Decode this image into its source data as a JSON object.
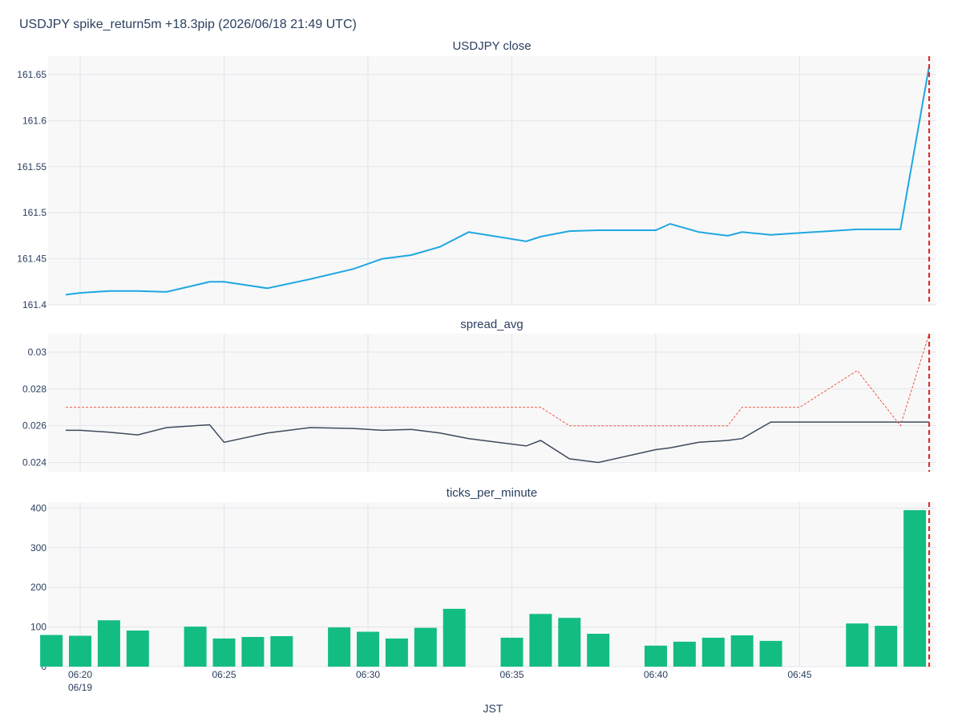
{
  "title": "USDJPY spike_return5m +18.3pip (2026/06/18 21:49 UTC)",
  "xlabel": "JST",
  "colors": {
    "close_line": "#1fa7e0",
    "spread_line": "#3d4a5c",
    "spread_ref": "#ef553b",
    "bars": "#13bd82",
    "event_line": "#e02020",
    "plot_bg": "#f8f8f9",
    "grid": "#e3e5ec"
  },
  "chart_data": [
    {
      "type": "line",
      "title": "USDJPY close",
      "x": [
        "06:19:30",
        "06:20:00",
        "06:21:00",
        "06:22:00",
        "06:23:00",
        "06:24:30",
        "06:25:00",
        "06:26:30",
        "06:28:00",
        "06:29:30",
        "06:30:30",
        "06:31:30",
        "06:32:30",
        "06:33:30",
        "06:35:30",
        "06:36:00",
        "06:37:00",
        "06:38:00",
        "06:40:00",
        "06:40:30",
        "06:41:30",
        "06:42:30",
        "06:43:00",
        "06:44:00",
        "06:45:00",
        "06:47:00",
        "06:48:30",
        "06:49:30"
      ],
      "series": [
        {
          "values": [
            161.411,
            161.413,
            161.415,
            161.415,
            161.414,
            161.425,
            161.425,
            161.418,
            161.428,
            161.439,
            161.45,
            161.454,
            161.463,
            161.479,
            161.469,
            161.474,
            161.48,
            161.481,
            161.481,
            161.488,
            161.479,
            161.475,
            161.479,
            161.476,
            161.478,
            161.482,
            161.482,
            161.659
          ]
        }
      ],
      "ylim": [
        161.4,
        161.67
      ],
      "yticks": [
        "161.4",
        "161.45",
        "161.5",
        "161.55",
        "161.6",
        "161.65"
      ],
      "event_x": "06:49:30"
    },
    {
      "type": "line",
      "title": "spread_avg",
      "x": [
        "06:19:30",
        "06:20:00",
        "06:21:00",
        "06:22:00",
        "06:23:00",
        "06:24:30",
        "06:25:00",
        "06:26:30",
        "06:28:00",
        "06:29:30",
        "06:30:30",
        "06:31:30",
        "06:32:30",
        "06:33:30",
        "06:35:30",
        "06:36:00",
        "06:37:00",
        "06:38:00",
        "06:40:00",
        "06:40:30",
        "06:41:30",
        "06:42:30",
        "06:43:00",
        "06:44:00",
        "06:45:00",
        "06:47:00",
        "06:48:30",
        "06:49:30"
      ],
      "series": [
        {
          "values": [
            0.02575,
            0.02575,
            0.02565,
            0.0255,
            0.0259,
            0.02605,
            0.0251,
            0.0256,
            0.0259,
            0.02585,
            0.02575,
            0.0258,
            0.0256,
            0.0253,
            0.0249,
            0.0252,
            0.0242,
            0.024,
            0.0247,
            0.0248,
            0.0251,
            0.0252,
            0.0253,
            0.0262,
            0.0262,
            0.0262,
            0.0262,
            0.0262
          ]
        },
        {
          "values": [
            0.027,
            0.027,
            0.027,
            0.027,
            0.027,
            0.027,
            0.027,
            0.027,
            0.027,
            0.027,
            0.027,
            0.027,
            0.027,
            0.027,
            0.027,
            0.027,
            0.026,
            0.026,
            0.026,
            0.026,
            0.026,
            0.026,
            0.027,
            0.027,
            0.027,
            0.029,
            0.026,
            0.031
          ]
        }
      ],
      "ylim": [
        0.0235,
        0.031
      ],
      "yticks": [
        "0.024",
        "0.026",
        "0.028",
        "0.03"
      ],
      "event_x": "06:49:30"
    },
    {
      "type": "bar",
      "title": "ticks_per_minute",
      "x": [
        "06:19",
        "06:20",
        "06:21",
        "06:22",
        "06:23",
        "06:24",
        "06:25",
        "06:26",
        "06:27",
        "06:28",
        "06:29",
        "06:30",
        "06:31",
        "06:32",
        "06:33",
        "06:34",
        "06:35",
        "06:36",
        "06:37",
        "06:38",
        "06:39",
        "06:40",
        "06:41",
        "06:42",
        "06:43",
        "06:44",
        "06:45",
        "06:46",
        "06:47",
        "06:48",
        "06:49"
      ],
      "values": [
        80,
        78,
        117,
        91,
        null,
        101,
        71,
        75,
        77,
        null,
        99,
        88,
        71,
        98,
        146,
        null,
        73,
        133,
        123,
        83,
        null,
        53,
        63,
        73,
        79,
        65,
        null,
        null,
        109,
        103,
        395
      ],
      "ylim": [
        0,
        415
      ],
      "yticks": [
        "0",
        "100",
        "200",
        "300",
        "400"
      ],
      "xticks": [
        "06:20",
        "06:25",
        "06:30",
        "06:35",
        "06:40",
        "06:45"
      ],
      "date_label": "06/19",
      "event_x": "06:49:30"
    }
  ]
}
